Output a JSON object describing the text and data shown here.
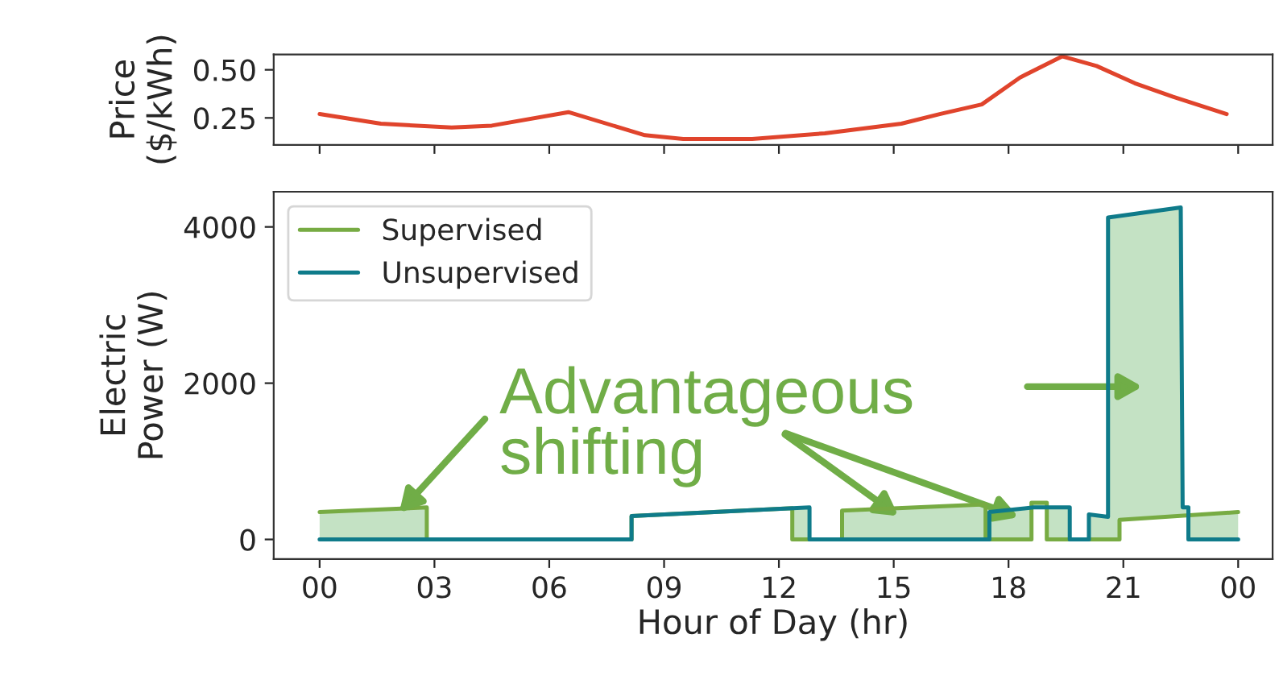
{
  "chart_data": [
    {
      "type": "line",
      "ylabel": "Price\n($/kWh)",
      "xlim": [
        -1.2,
        24.9
      ],
      "ylim": [
        0.11,
        0.58
      ],
      "yticks": [
        0.25,
        {
          "value": 0.5,
          "label": "0.50"
        }
      ],
      "tick_labels": "y",
      "xticks": [
        {
          "value": 0,
          "label": null
        },
        {
          "value": 3,
          "label": null
        },
        {
          "value": 6,
          "label": null
        },
        {
          "value": 9,
          "label": null
        },
        {
          "value": 12,
          "label": null
        },
        {
          "value": 15,
          "label": null
        },
        {
          "value": 18,
          "label": null
        },
        {
          "value": 21,
          "label": null
        },
        {
          "value": 24,
          "label": null
        }
      ],
      "grid": false,
      "legend": false,
      "series": [
        {
          "color": "#e0442c",
          "x": [
            0,
            1.6,
            3.45,
            4.5,
            6.5,
            8.5,
            9.5,
            11.3,
            13.2,
            15.2,
            16.2,
            17.3,
            18.3,
            19.4,
            20.3,
            21.3,
            22.3,
            23.7
          ],
          "values": [
            0.27,
            0.22,
            0.2,
            0.21,
            0.28,
            0.16,
            0.14,
            0.14,
            0.17,
            0.22,
            0.27,
            0.32,
            0.46,
            0.57,
            0.52,
            0.43,
            0.36,
            0.27
          ]
        }
      ]
    },
    {
      "type": "line",
      "ylabel": "Electric\nPower (W)",
      "xlabel": "Hour of Day (hr)",
      "xlim": [
        -1.2,
        24.9
      ],
      "ylim": [
        -250,
        4450
      ],
      "yticks": [
        0,
        2000,
        4000
      ],
      "xticks": [
        {
          "value": 0,
          "label": "00"
        },
        {
          "value": 3,
          "label": "03"
        },
        {
          "value": 6,
          "label": "06"
        },
        {
          "value": 9,
          "label": "09"
        },
        {
          "value": 12,
          "label": "12"
        },
        {
          "value": 15,
          "label": "15"
        },
        {
          "value": 18,
          "label": "18"
        },
        {
          "value": 21,
          "label": "21"
        },
        {
          "value": 24,
          "label": "00"
        }
      ],
      "grid": false,
      "legend": "top left",
      "annotations": [
        {
          "text": "Advantageous\nshifting",
          "x": 2.0,
          "y": 300
        }
      ],
      "series": [
        {
          "name": "Supervised",
          "color": "#77ab43",
          "x": [
            0,
            2.8,
            2.8,
            8.15,
            8.15,
            12.35,
            12.35,
            13.65,
            13.65,
            17.4,
            17.4,
            18.6,
            18.6,
            19.0,
            19.0,
            20.9,
            20.9,
            24
          ],
          "values": [
            350,
            410,
            0,
            0,
            300,
            400,
            0,
            0,
            370,
            450,
            0,
            0,
            470,
            470,
            0,
            0,
            250,
            350
          ]
        },
        {
          "name": "Unsupervised",
          "color": "#0f7b8a",
          "x": [
            0,
            8.15,
            8.15,
            12.8,
            12.8,
            17.5,
            17.5,
            18.65,
            19.6,
            19.6,
            20.1,
            20.1,
            20.6,
            20.6,
            22.5,
            22.55,
            22.7,
            22.7,
            24
          ],
          "values": [
            0,
            0,
            300,
            410,
            0,
            0,
            350,
            410,
            410,
            0,
            0,
            320,
            290,
            4120,
            4250,
            410,
            410,
            0,
            0
          ]
        }
      ]
    }
  ]
}
